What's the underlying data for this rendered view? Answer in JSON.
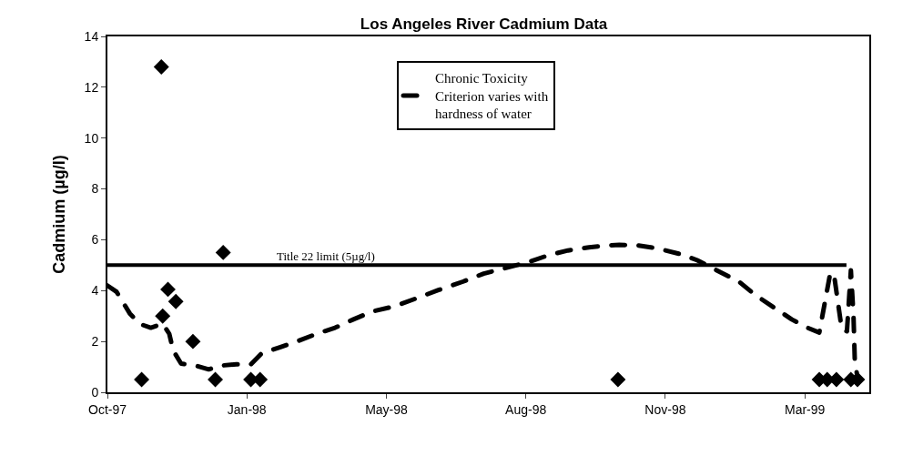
{
  "chart_data": {
    "type": "scatter",
    "title": "Los Angeles River Cadmium Data",
    "ylabel": "Cadmium (µg/l)",
    "xlim": [
      "1997-10-01",
      "1999-05-03"
    ],
    "xticks": [
      {
        "value": "1997-10-01",
        "label": "Oct-97"
      },
      {
        "value": "1998-01-15",
        "label": "Jan-98"
      },
      {
        "value": "1998-05-01",
        "label": "May-98"
      },
      {
        "value": "1998-08-15",
        "label": "Aug-98"
      },
      {
        "value": "1998-11-29",
        "label": "Nov-98"
      },
      {
        "value": "1999-03-15",
        "label": "Mar-99"
      }
    ],
    "ylim": [
      0,
      14
    ],
    "yticks": [
      0,
      2,
      4,
      6,
      8,
      10,
      12,
      14
    ],
    "grid": false,
    "legend": "top",
    "series": [
      {
        "color": "#000000",
        "marker": "diamond",
        "x": [
          "1997-10-27",
          "1997-11-11",
          "1997-11-12",
          "1997-11-16",
          "1997-11-22",
          "1997-12-05",
          "1997-12-22",
          "1997-12-28",
          "1998-01-18",
          "1998-01-25",
          "1998-10-24",
          "1999-03-26",
          "1999-04-01",
          "1999-04-08",
          "1999-04-19",
          "1999-04-24"
        ],
        "values": [
          0.5,
          12.8,
          3.0,
          4.05,
          3.57,
          2.0,
          0.5,
          5.5,
          0.5,
          0.5,
          0.5,
          0.5,
          0.5,
          0.5,
          0.5,
          0.5
        ]
      },
      {
        "type": "line",
        "name": "Chronic Toxicity Criterion varies with hardness of water",
        "color": "#000000",
        "marker": "none",
        "line_style": "dashed",
        "x": [
          "1997-10-01",
          "1997-10-08",
          "1997-10-18",
          "1997-10-26",
          "1997-11-03",
          "1997-11-12",
          "1997-11-17",
          "1997-11-20",
          "1997-11-26",
          "1997-12-07",
          "1997-12-17",
          "1997-12-26",
          "1998-01-07",
          "1998-01-18",
          "1998-01-26",
          "1998-02-09",
          "1998-02-23",
          "1998-03-09",
          "1998-03-23",
          "1998-04-06",
          "1998-04-21",
          "1998-05-07",
          "1998-05-24",
          "1998-06-10",
          "1998-06-28",
          "1998-07-14",
          "1998-08-17",
          "1998-09-01",
          "1998-09-16",
          "1998-10-02",
          "1998-10-17",
          "1998-10-25",
          "1998-11-08",
          "1998-11-23",
          "1998-12-10",
          "1998-12-23",
          "1999-01-07",
          "1999-01-24",
          "1999-02-05",
          "1999-02-20",
          "1999-03-05",
          "1999-03-17",
          "1999-03-26",
          "1999-04-03",
          "1999-04-06",
          "1999-04-12",
          "1999-04-16",
          "1999-04-19",
          "1999-04-21",
          "1999-04-22",
          "1999-04-24"
        ],
        "values": [
          4.2,
          3.95,
          3.1,
          2.68,
          2.54,
          2.7,
          2.3,
          1.64,
          1.13,
          1.05,
          0.9,
          1.05,
          1.1,
          1.1,
          1.52,
          1.77,
          2.02,
          2.3,
          2.54,
          2.87,
          3.19,
          3.38,
          3.7,
          4.03,
          4.35,
          4.67,
          5.12,
          5.39,
          5.58,
          5.7,
          5.78,
          5.8,
          5.78,
          5.66,
          5.44,
          5.2,
          4.8,
          4.35,
          3.84,
          3.32,
          2.87,
          2.54,
          2.35,
          4.6,
          4.7,
          2.5,
          2.4,
          4.8,
          3.0,
          1.2,
          0.6
        ]
      }
    ],
    "ref_lines": [
      {
        "axis": "y",
        "value": 5,
        "label": "Title 22 limit (5µg/l)",
        "color": "#000000",
        "line_style": "solid"
      }
    ]
  }
}
